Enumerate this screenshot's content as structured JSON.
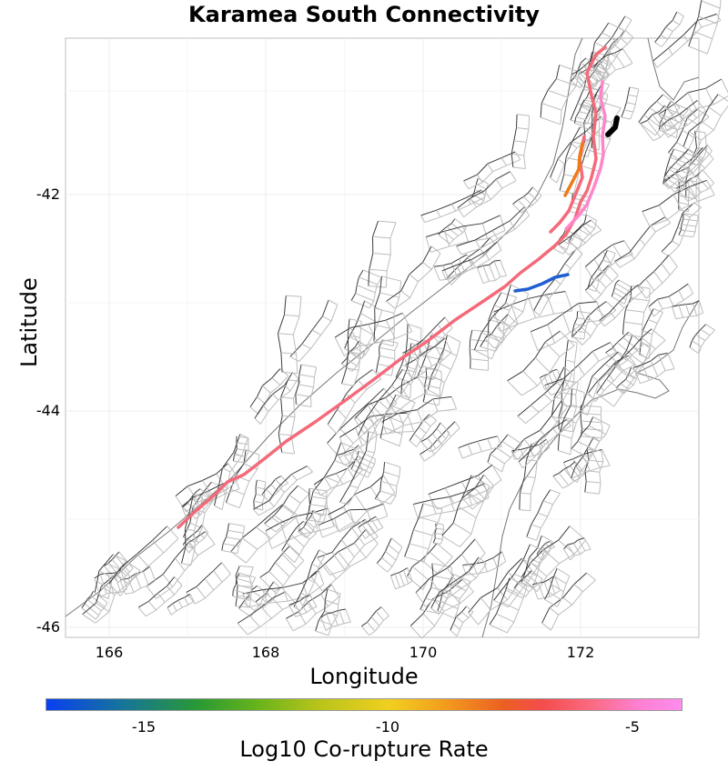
{
  "title": "Karamea South Connectivity",
  "xaxis": {
    "label": "Longitude",
    "ticks": [
      "166",
      "168",
      "170",
      "172"
    ]
  },
  "yaxis": {
    "label": "Latitude",
    "ticks": [
      "-42",
      "-44",
      "-46"
    ]
  },
  "colorbar": {
    "label": "Log10 Co-rupture Rate",
    "ticks": [
      "-15",
      "-10",
      "-5"
    ]
  },
  "colors": {
    "main_trace": "#f46a7a",
    "pink_trace": "#ff85c8",
    "orange_trace": "#ef7a16",
    "blue_trace": "#1f5ed1",
    "black_trace": "#000000"
  }
}
